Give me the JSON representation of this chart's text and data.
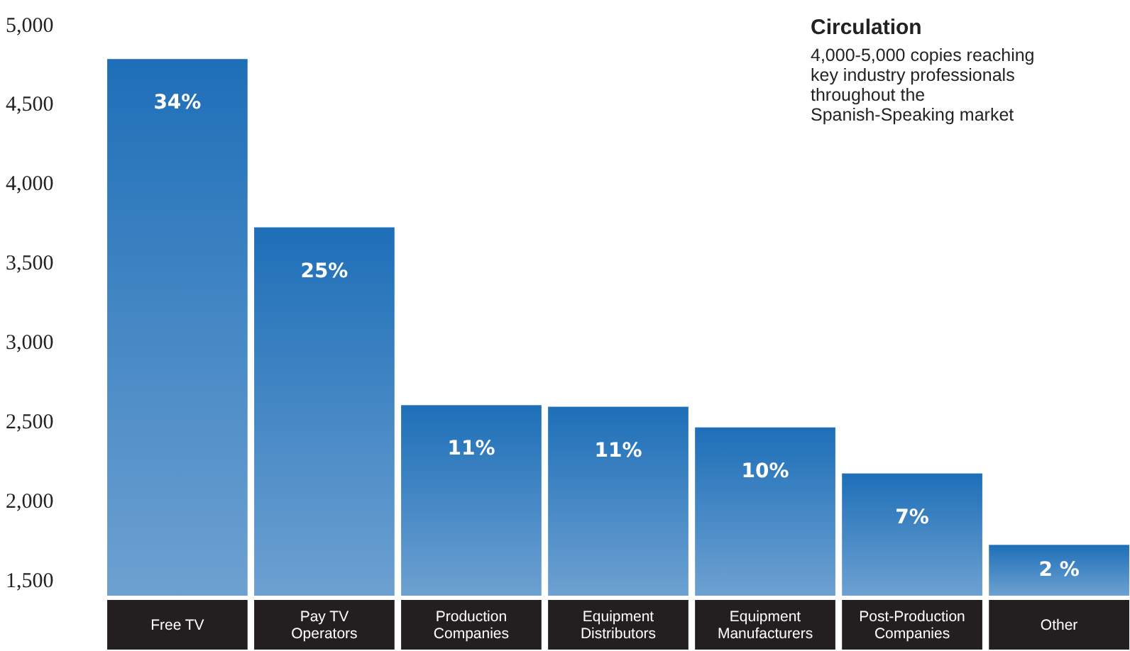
{
  "chart_data": {
    "type": "bar",
    "title": "Circulation",
    "subtitle": "4,000-5,000 copies reaching key industry professionals throughout the Spanish-Speaking market",
    "categories": [
      "Free TV",
      "Pay TV Operators",
      "Production Companies",
      "Equipment Distributors",
      "Equipment Manufacturers",
      "Post-Production Companies",
      "Other"
    ],
    "values": [
      4780,
      3720,
      2600,
      2590,
      2460,
      2170,
      1720
    ],
    "annotations": [
      {
        "text": "34%",
        "x": "Free TV",
        "y": 4780
      },
      {
        "text": "25%",
        "x": "Pay TV Operators",
        "y": 3720
      },
      {
        "text": "11%",
        "x": "Production Companies",
        "y": 2600
      },
      {
        "text": "11%",
        "x": "Equipment Distributors",
        "y": 2590
      },
      {
        "text": "10%",
        "x": "Equipment Manufacturers",
        "y": 2460
      },
      {
        "text": "7%",
        "x": "Post-Production Companies",
        "y": 2170
      },
      {
        "text": "2 %",
        "x": "Other",
        "y": 1720
      }
    ],
    "color": "#1e6fb8",
    "ylim": [
      1400,
      5000
    ],
    "yticks": [
      {
        "value": 1500,
        "label": "1,500"
      },
      {
        "value": 2000,
        "label": "2,000"
      },
      {
        "value": 2500,
        "label": "2,500"
      },
      {
        "value": 3000,
        "label": "3,000"
      },
      {
        "value": 3500,
        "label": "3,500"
      },
      {
        "value": 4000,
        "label": "4,000"
      },
      {
        "value": 4500,
        "label": "4,500"
      },
      {
        "value": 5000,
        "label": "5,000"
      }
    ],
    "grid": false
  }
}
